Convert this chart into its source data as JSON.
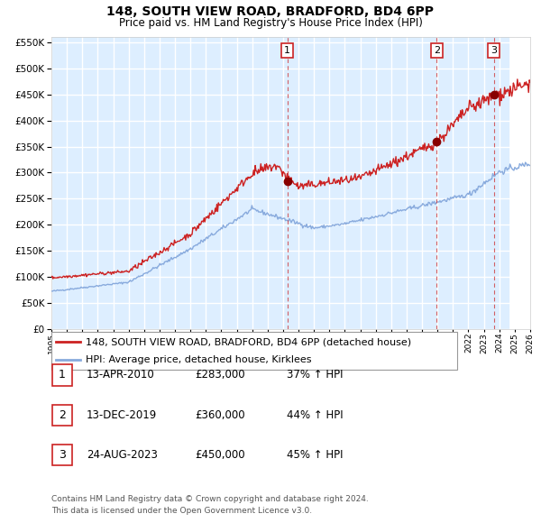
{
  "title": "148, SOUTH VIEW ROAD, BRADFORD, BD4 6PP",
  "subtitle": "Price paid vs. HM Land Registry's House Price Index (HPI)",
  "ylim": [
    0,
    560000
  ],
  "xlim_start": 1995.0,
  "xlim_end": 2026.0,
  "hpi_color": "#88aadd",
  "price_color": "#cc2222",
  "bg_color": "#ddeeff",
  "grid_color": "#ffffff",
  "sale_dates": [
    2010.28,
    2019.95,
    2023.65
  ],
  "sale_prices": [
    283000,
    360000,
    450000
  ],
  "sale_labels": [
    "1",
    "2",
    "3"
  ],
  "legend_line1": "148, SOUTH VIEW ROAD, BRADFORD, BD4 6PP (detached house)",
  "legend_line2": "HPI: Average price, detached house, Kirklees",
  "table_rows": [
    [
      "1",
      "13-APR-2010",
      "£283,000",
      "37% ↑ HPI"
    ],
    [
      "2",
      "13-DEC-2019",
      "£360,000",
      "44% ↑ HPI"
    ],
    [
      "3",
      "24-AUG-2023",
      "£450,000",
      "45% ↑ HPI"
    ]
  ],
  "footnote1": "Contains HM Land Registry data © Crown copyright and database right 2024.",
  "footnote2": "This data is licensed under the Open Government Licence v3.0.",
  "future_start": 2024.65,
  "yticks": [
    0,
    50000,
    100000,
    150000,
    200000,
    250000,
    300000,
    350000,
    400000,
    450000,
    500000,
    550000
  ]
}
